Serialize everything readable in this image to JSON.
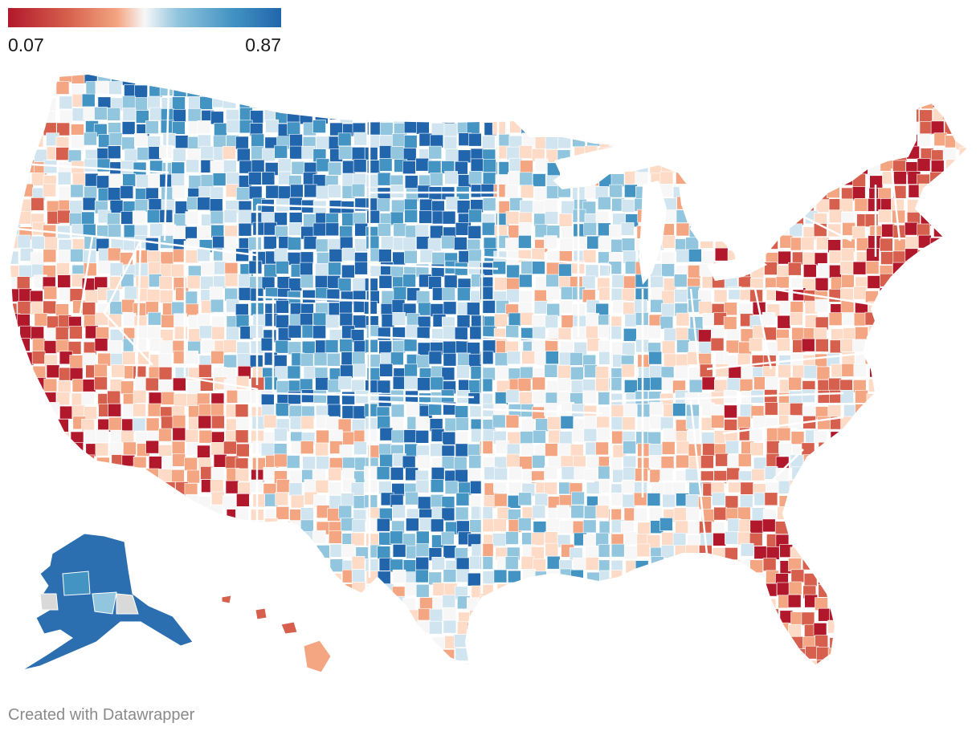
{
  "legend": {
    "min_label": "0.07",
    "max_label": "0.87",
    "colors": [
      "#b2182b",
      "#d6604d",
      "#f4a582",
      "#fddbc7",
      "#f7f7f7",
      "#d1e5f0",
      "#92c5de",
      "#4393c3",
      "#2166ac"
    ]
  },
  "footer": {
    "credit": "Created with Datawrapper"
  },
  "map": {
    "fill_missing": "#d9d9d9",
    "border": "#ffffff"
  }
}
